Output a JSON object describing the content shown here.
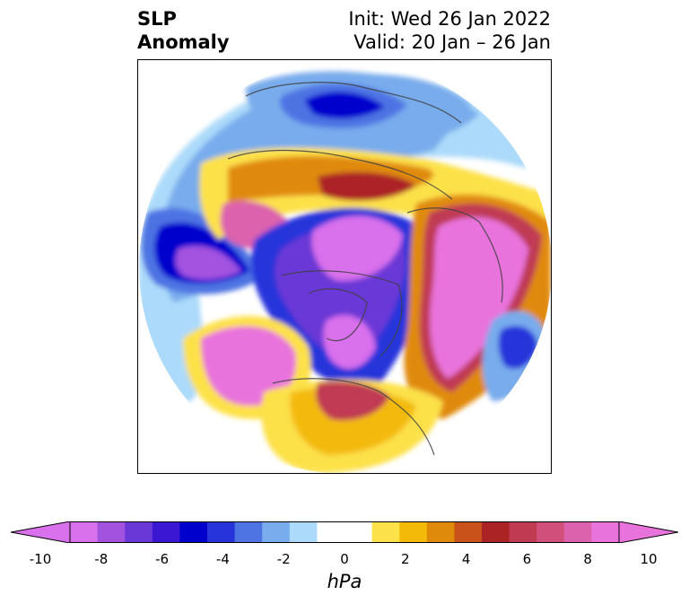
{
  "header": {
    "title_line1": "SLP",
    "title_line2": "Anomaly",
    "init": "Init: Wed 26 Jan 2022",
    "valid": "Valid: 20 Jan – 26 Jan"
  },
  "colorbar": {
    "unit": "hPa",
    "tick_labels": [
      "-10",
      "-8",
      "-6",
      "-4",
      "-2",
      "0",
      "2",
      "4",
      "6",
      "8",
      "10"
    ],
    "colors": [
      "#d970ec",
      "#a352e0",
      "#6a38d6",
      "#3b17d4",
      "#0000cd",
      "#2634da",
      "#4e73e3",
      "#78acec",
      "#acdafa",
      "#ffffff",
      "#ffffff",
      "#fde14a",
      "#f3ba0a",
      "#e08a0c",
      "#c9511a",
      "#ac2326",
      "#c03a52",
      "#d1507b",
      "#dc62ad",
      "#e873dc"
    ]
  }
}
